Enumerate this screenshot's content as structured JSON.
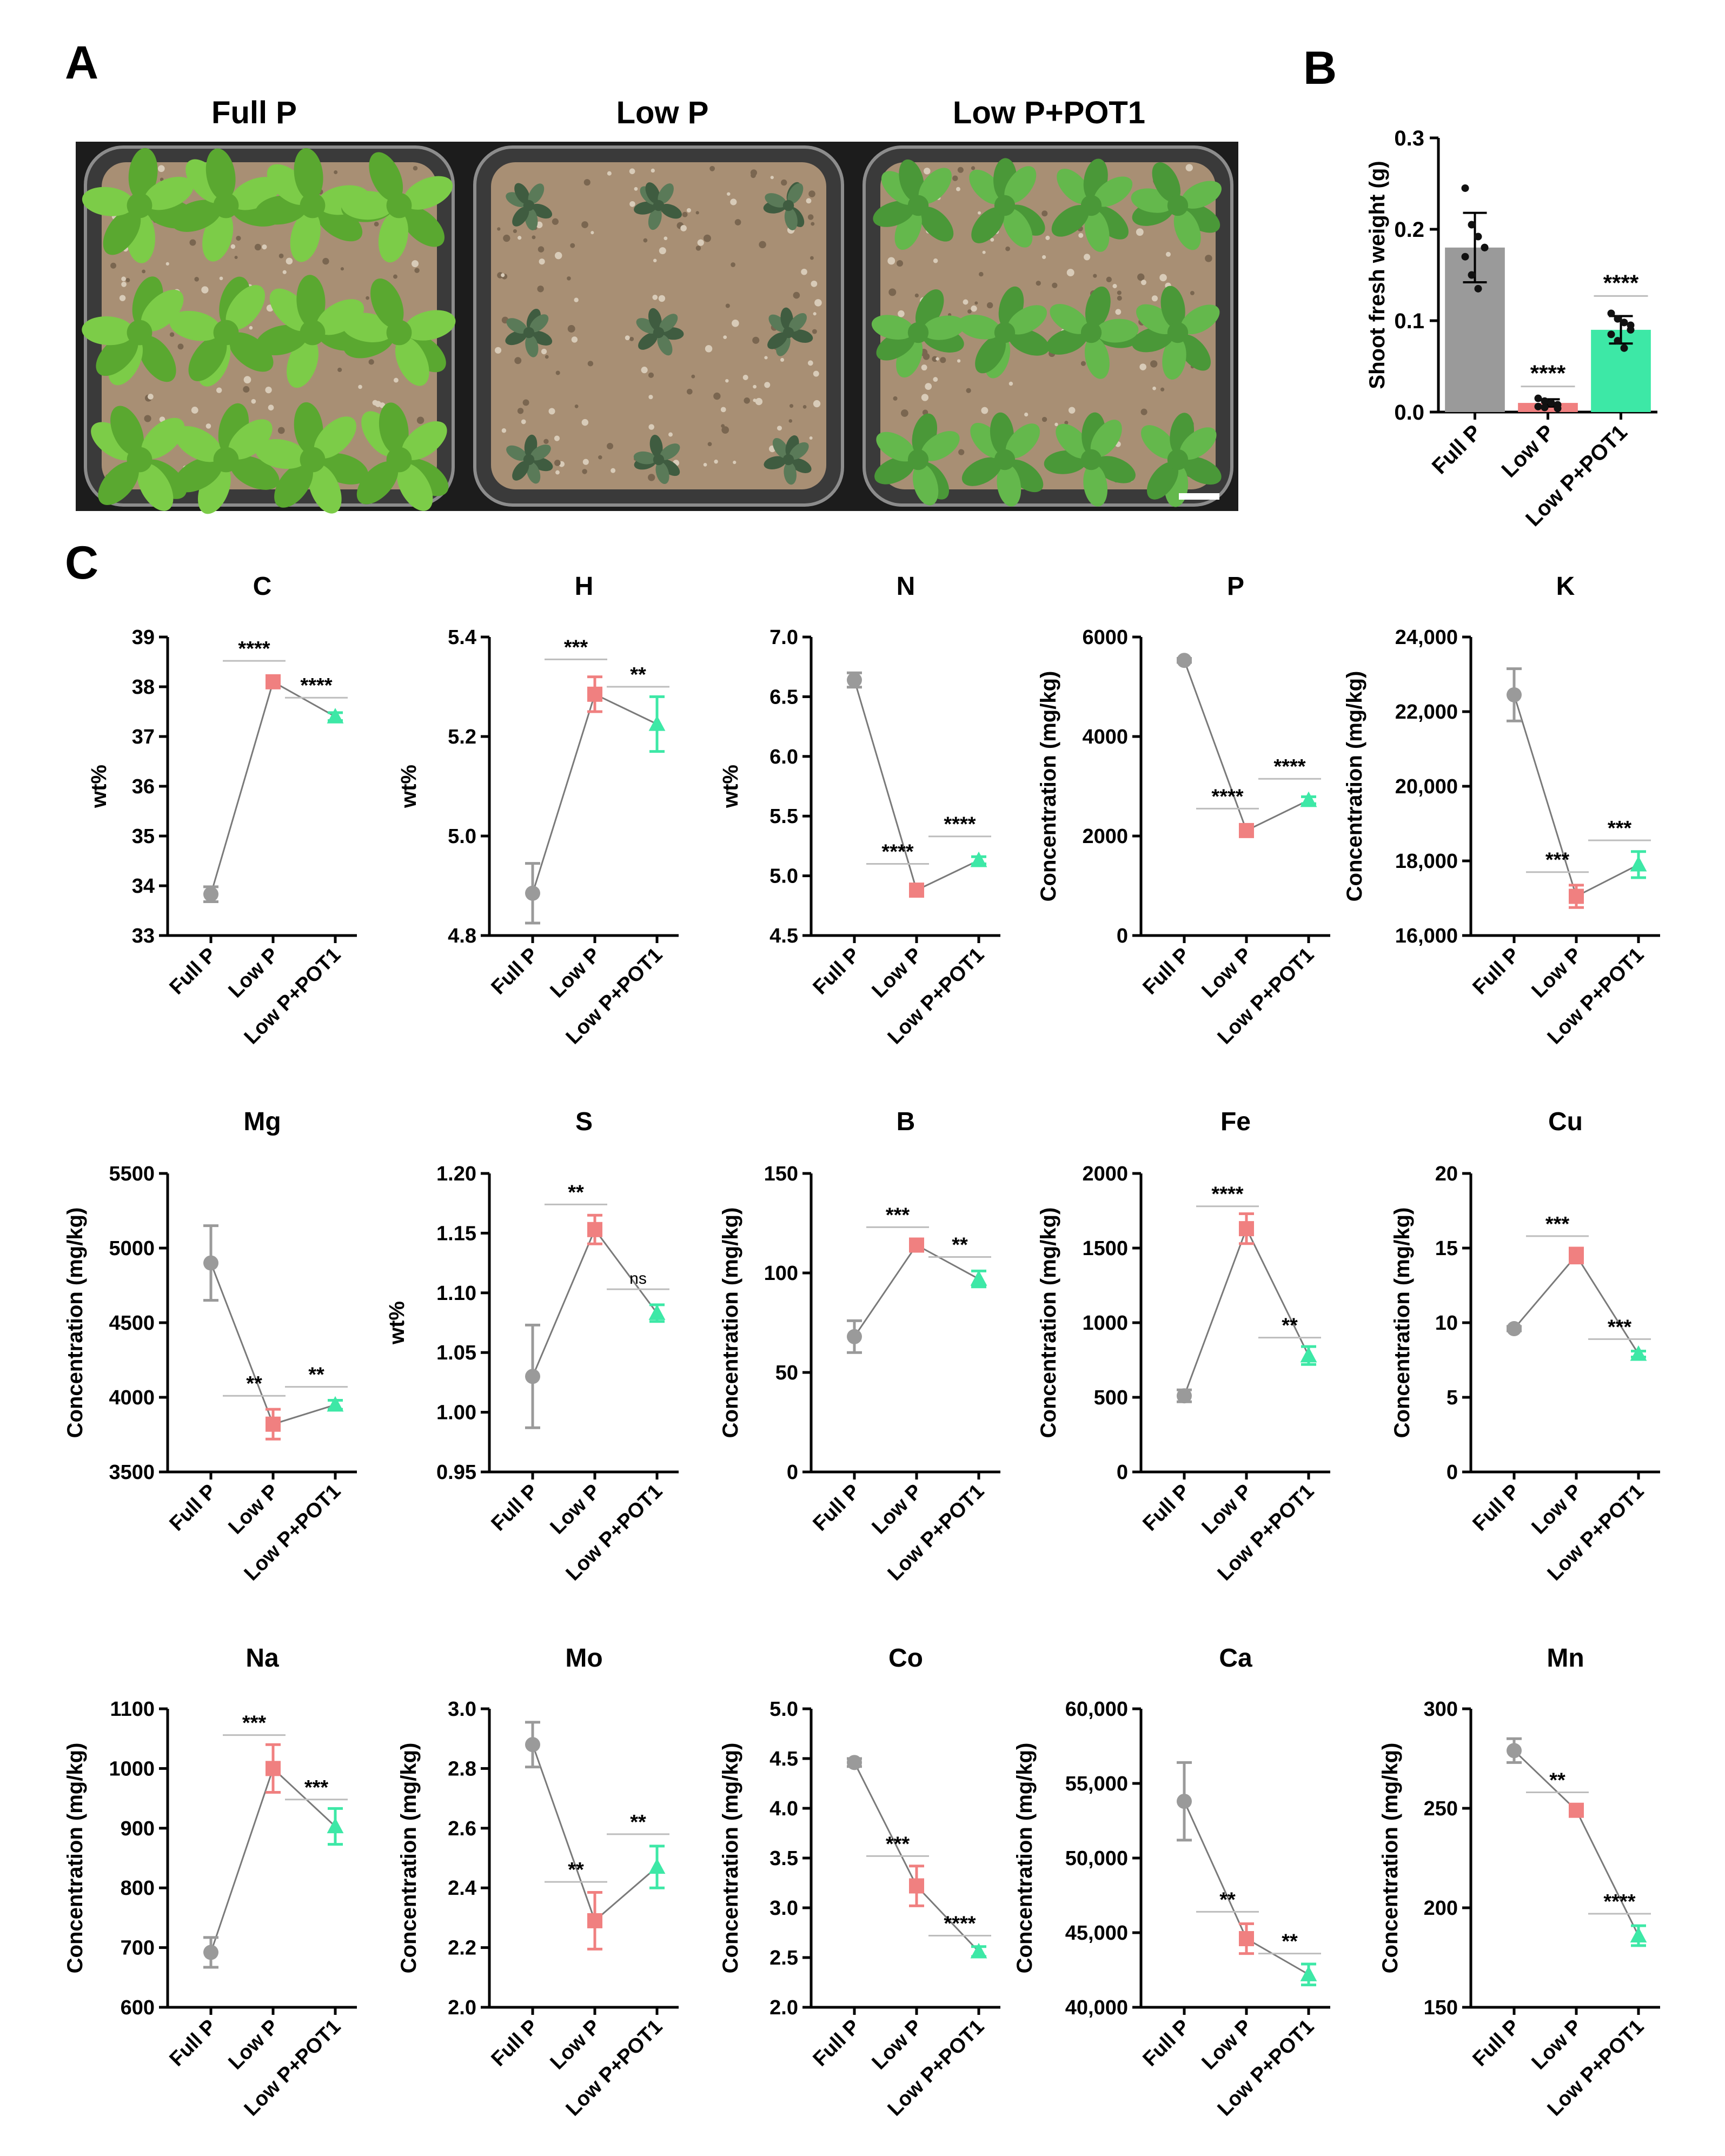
{
  "colors": {
    "full_p": "#9a9a9a",
    "low_p": "#f08080",
    "low_p_pot1": "#3de8a6",
    "axis": "#000000",
    "sig_line": "#bdbdbd",
    "photo_bg": "#1c1c1c",
    "soil": "#a88f74",
    "leaf": "#74c844"
  },
  "panel_labels": {
    "a": "A",
    "b": "B",
    "c": "C"
  },
  "photo": {
    "labels": [
      "Full P",
      "Low P",
      "Low P+POT1"
    ],
    "pot_descriptions": [
      "large green rosettes",
      "small dark rosettes",
      "medium green rosettes"
    ],
    "plant_counts": [
      12,
      9,
      12
    ]
  },
  "chart_data": [
    {
      "id": "shoot_weight",
      "type": "bar",
      "ylabel": "Shoot fresh weight (g)",
      "categories": [
        "Full P",
        "Low P",
        "Low P+POT1"
      ],
      "values": [
        0.18,
        0.01,
        0.09
      ],
      "errors": [
        0.038,
        0.004,
        0.015
      ],
      "ylim": [
        0,
        0.3
      ],
      "yticks": [
        "0.0",
        "0.1",
        "0.2",
        "0.3"
      ],
      "points": [
        [
          0.245,
          0.205,
          0.192,
          0.18,
          0.17,
          0.15,
          0.135,
          0.18
        ],
        [
          0.015,
          0.012,
          0.01,
          0.008,
          0.006,
          0.005,
          0.01,
          0.004
        ],
        [
          0.108,
          0.102,
          0.098,
          0.09,
          0.085,
          0.078,
          0.07,
          0.095
        ]
      ],
      "sig": [
        {
          "label": "****",
          "cat": 1,
          "y": 0.028
        },
        {
          "label": "****",
          "cat": 2,
          "y": 0.127
        }
      ]
    },
    {
      "id": "C",
      "type": "line",
      "title": "C",
      "ylabel": "wt%",
      "categories": [
        "Full P",
        "Low P",
        "Low P+POT1"
      ],
      "values": [
        33.83,
        38.1,
        37.4
      ],
      "errors": [
        0.15,
        0.05,
        0.08
      ],
      "ylim": [
        33,
        39
      ],
      "yticks": [
        "33",
        "34",
        "35",
        "36",
        "37",
        "38",
        "39"
      ],
      "sig": [
        {
          "label": "****",
          "from": 0,
          "to": 1,
          "y": 38.52
        },
        {
          "label": "****",
          "from": 1,
          "to": 2,
          "y": 37.78
        }
      ]
    },
    {
      "id": "H",
      "type": "line",
      "title": "H",
      "ylabel": "wt%",
      "categories": [
        "Full P",
        "Low P",
        "Low P+POT1"
      ],
      "values": [
        4.885,
        5.285,
        5.225
      ],
      "errors": [
        0.06,
        0.035,
        0.055
      ],
      "ylim": [
        4.8,
        5.4
      ],
      "yticks": [
        "4.8",
        "5.0",
        "5.2",
        "5.4"
      ],
      "sig": [
        {
          "label": "***",
          "from": 0,
          "to": 1,
          "y": 5.355
        },
        {
          "label": "**",
          "from": 1,
          "to": 2,
          "y": 5.3
        }
      ]
    },
    {
      "id": "N",
      "type": "line",
      "title": "N",
      "ylabel": "wt%",
      "categories": [
        "Full P",
        "Low P",
        "Low P+POT1"
      ],
      "values": [
        6.64,
        4.88,
        5.13
      ],
      "errors": [
        0.06,
        0.03,
        0.03
      ],
      "ylim": [
        4.5,
        7.0
      ],
      "yticks": [
        "4.5",
        "5.0",
        "5.5",
        "6.0",
        "6.5",
        "7.0"
      ],
      "sig": [
        {
          "label": "****",
          "from": 0,
          "to": 1,
          "y": 5.1
        },
        {
          "label": "****",
          "from": 1,
          "to": 2,
          "y": 5.33
        }
      ]
    },
    {
      "id": "P",
      "type": "line",
      "title": "P",
      "ylabel": "Concentration (mg/kg)",
      "categories": [
        "Full P",
        "Low P",
        "Low P+POT1"
      ],
      "values": [
        5530,
        2110,
        2720
      ],
      "errors": [
        40,
        80,
        70
      ],
      "ylim": [
        0,
        6000
      ],
      "yticks": [
        "0",
        "2000",
        "4000",
        "6000"
      ],
      "sig": [
        {
          "label": "****",
          "from": 0,
          "to": 1,
          "y": 2550
        },
        {
          "label": "****",
          "from": 1,
          "to": 2,
          "y": 3150
        }
      ]
    },
    {
      "id": "K",
      "type": "line",
      "title": "K",
      "ylabel": "Concentration (mg/kg)",
      "categories": [
        "Full P",
        "Low P",
        "Low P+POT1"
      ],
      "values": [
        22450,
        17050,
        17900
      ],
      "errors": [
        700,
        300,
        350
      ],
      "ylim": [
        16000,
        24000
      ],
      "yticks": [
        "16,000",
        "18,000",
        "20,000",
        "22,000",
        "24,000"
      ],
      "sig": [
        {
          "label": "***",
          "from": 0,
          "to": 1,
          "y": 17700
        },
        {
          "label": "***",
          "from": 1,
          "to": 2,
          "y": 18550
        }
      ]
    },
    {
      "id": "Mg",
      "type": "line",
      "title": "Mg",
      "ylabel": "Concentration (mg/kg)",
      "categories": [
        "Full P",
        "Low P",
        "Low P+POT1"
      ],
      "values": [
        4900,
        3820,
        3950
      ],
      "errors": [
        250,
        100,
        30
      ],
      "ylim": [
        3500,
        5500
      ],
      "yticks": [
        "3500",
        "4000",
        "4500",
        "5000",
        "5500"
      ],
      "sig": [
        {
          "label": "**",
          "from": 0,
          "to": 1,
          "y": 4010
        },
        {
          "label": "**",
          "from": 1,
          "to": 2,
          "y": 4070
        }
      ]
    },
    {
      "id": "S",
      "type": "line",
      "title": "S",
      "ylabel": "wt%",
      "categories": [
        "Full P",
        "Low P",
        "Low P+POT1"
      ],
      "values": [
        1.03,
        1.153,
        1.083
      ],
      "errors": [
        0.043,
        0.012,
        0.007
      ],
      "ylim": [
        0.95,
        1.2
      ],
      "yticks": [
        "0.95",
        "1.00",
        "1.05",
        "1.10",
        "1.15",
        "1.20"
      ],
      "sig": [
        {
          "label": "**",
          "from": 0,
          "to": 1,
          "y": 1.174
        },
        {
          "label": "ns",
          "from": 1,
          "to": 2,
          "y": 1.103
        }
      ]
    },
    {
      "id": "B",
      "type": "line",
      "title": "B",
      "ylabel": "Concentration (mg/kg)",
      "categories": [
        "Full P",
        "Low P",
        "Low P+POT1"
      ],
      "values": [
        68,
        114,
        97
      ],
      "errors": [
        8,
        2,
        4
      ],
      "ylim": [
        0,
        150
      ],
      "yticks": [
        "0",
        "50",
        "100",
        "150"
      ],
      "sig": [
        {
          "label": "***",
          "from": 0,
          "to": 1,
          "y": 123
        },
        {
          "label": "**",
          "from": 1,
          "to": 2,
          "y": 108
        }
      ]
    },
    {
      "id": "Fe",
      "type": "line",
      "title": "Fe",
      "ylabel": "Concentration (mg/kg)",
      "categories": [
        "Full P",
        "Low P",
        "Low P+POT1"
      ],
      "values": [
        510,
        1630,
        780
      ],
      "errors": [
        40,
        100,
        60
      ],
      "ylim": [
        0,
        2000
      ],
      "yticks": [
        "0",
        "500",
        "1000",
        "1500",
        "2000"
      ],
      "sig": [
        {
          "label": "****",
          "from": 0,
          "to": 1,
          "y": 1780
        },
        {
          "label": "**",
          "from": 1,
          "to": 2,
          "y": 900
        }
      ]
    },
    {
      "id": "Cu",
      "type": "line",
      "title": "Cu",
      "ylabel": "Concentration (mg/kg)",
      "categories": [
        "Full P",
        "Low P",
        "Low P+POT1"
      ],
      "values": [
        9.6,
        14.5,
        7.9
      ],
      "errors": [
        0.15,
        0.5,
        0.2
      ],
      "ylim": [
        0,
        20
      ],
      "yticks": [
        "0",
        "5",
        "10",
        "15",
        "20"
      ],
      "sig": [
        {
          "label": "***",
          "from": 0,
          "to": 1,
          "y": 15.8
        },
        {
          "label": "***",
          "from": 1,
          "to": 2,
          "y": 8.9
        }
      ]
    },
    {
      "id": "Na",
      "type": "line",
      "title": "Na",
      "ylabel": "Concentration (mg/kg)",
      "categories": [
        "Full P",
        "Low P",
        "Low P+POT1"
      ],
      "values": [
        692,
        1000,
        903
      ],
      "errors": [
        25,
        40,
        30
      ],
      "ylim": [
        600,
        1100
      ],
      "yticks": [
        "600",
        "700",
        "800",
        "900",
        "1000",
        "1100"
      ],
      "sig": [
        {
          "label": "***",
          "from": 0,
          "to": 1,
          "y": 1056
        },
        {
          "label": "***",
          "from": 1,
          "to": 2,
          "y": 948
        }
      ]
    },
    {
      "id": "Mo",
      "type": "line",
      "title": "Mo",
      "ylabel": "Concentration (mg/kg)",
      "categories": [
        "Full P",
        "Low P",
        "Low P+POT1"
      ],
      "values": [
        2.88,
        2.29,
        2.47
      ],
      "errors": [
        0.075,
        0.095,
        0.07
      ],
      "ylim": [
        2.0,
        3.0
      ],
      "yticks": [
        "2.0",
        "2.2",
        "2.4",
        "2.6",
        "2.8",
        "3.0"
      ],
      "sig": [
        {
          "label": "**",
          "from": 0,
          "to": 1,
          "y": 2.42
        },
        {
          "label": "**",
          "from": 1,
          "to": 2,
          "y": 2.58
        }
      ]
    },
    {
      "id": "Co",
      "type": "line",
      "title": "Co",
      "ylabel": "Concentration (mg/kg)",
      "categories": [
        "Full P",
        "Low P",
        "Low P+POT1"
      ],
      "values": [
        4.46,
        3.22,
        2.56
      ],
      "errors": [
        0.04,
        0.2,
        0.05
      ],
      "ylim": [
        2.0,
        5.0
      ],
      "yticks": [
        "2.0",
        "2.5",
        "3.0",
        "3.5",
        "4.0",
        "4.5",
        "5.0"
      ],
      "sig": [
        {
          "label": "***",
          "from": 0,
          "to": 1,
          "y": 3.52
        },
        {
          "label": "****",
          "from": 1,
          "to": 2,
          "y": 2.72
        }
      ]
    },
    {
      "id": "Ca",
      "type": "line",
      "title": "Ca",
      "ylabel": "Concentration (mg/kg)",
      "categories": [
        "Full P",
        "Low P",
        "Low P+POT1"
      ],
      "values": [
        53800,
        44600,
        42200
      ],
      "errors": [
        2600,
        1000,
        700
      ],
      "ylim": [
        40000,
        60000
      ],
      "yticks": [
        "40,000",
        "45,000",
        "50,000",
        "55,000",
        "60,000"
      ],
      "sig": [
        {
          "label": "**",
          "from": 0,
          "to": 1,
          "y": 46400
        },
        {
          "label": "**",
          "from": 1,
          "to": 2,
          "y": 43600
        }
      ]
    },
    {
      "id": "Mn",
      "type": "line",
      "title": "Mn",
      "ylabel": "Concentration (mg/kg)",
      "categories": [
        "Full P",
        "Low P",
        "Low P+POT1"
      ],
      "values": [
        279,
        249,
        186
      ],
      "errors": [
        6,
        2,
        5
      ],
      "ylim": [
        150,
        300
      ],
      "yticks": [
        "150",
        "200",
        "250",
        "300"
      ],
      "sig": [
        {
          "label": "**",
          "from": 0,
          "to": 1,
          "y": 258
        },
        {
          "label": "****",
          "from": 1,
          "to": 2,
          "y": 197
        }
      ]
    }
  ]
}
